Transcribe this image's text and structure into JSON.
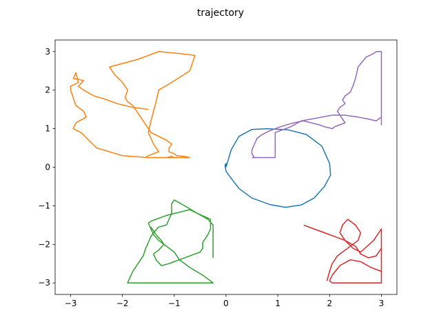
{
  "chart_data": {
    "type": "line",
    "title": "trajectory",
    "xlabel": "",
    "ylabel": "",
    "xlim": [
      -3.3,
      3.3
    ],
    "ylim": [
      -3.3,
      3.3
    ],
    "xticks": [
      -3,
      -2,
      -1,
      0,
      1,
      2,
      3
    ],
    "yticks": [
      -3,
      -2,
      -1,
      0,
      1,
      2,
      3
    ],
    "xtick_labels": [
      "−3",
      "−2",
      "−1",
      "0",
      "1",
      "2",
      "3"
    ],
    "ytick_labels": [
      "−3",
      "−2",
      "−1",
      "0",
      "1",
      "2",
      "3"
    ],
    "grid": false,
    "legend": "none",
    "series": [
      {
        "color": "#1f77b4",
        "x": [
          0.0,
          0.1,
          0.25,
          0.5,
          0.8,
          1.2,
          1.55,
          1.85,
          2.0,
          2.02,
          1.9,
          1.7,
          1.45,
          1.15,
          0.85,
          0.5,
          0.25,
          0.05,
          0.0,
          -0.02,
          0.0,
          0.0
        ],
        "y": [
          0.0,
          0.45,
          0.8,
          0.98,
          1.0,
          0.97,
          0.85,
          0.55,
          0.1,
          -0.2,
          -0.5,
          -0.8,
          -0.98,
          -1.04,
          -0.97,
          -0.8,
          -0.55,
          -0.2,
          -0.1,
          0.05,
          0.1,
          0.0
        ]
      },
      {
        "color": "#ff7f0e",
        "x": [
          -1.5,
          -1.8,
          -2.1,
          -2.3,
          -2.55,
          -2.75,
          -2.85,
          -2.75,
          -2.95,
          -2.9,
          -2.85,
          -3.0,
          -3.0,
          -2.95,
          -2.9,
          -2.75,
          -2.7,
          -2.9,
          -2.95,
          -2.8,
          -2.65,
          -2.5,
          -2.0,
          -1.5,
          -1.35,
          -1.3,
          -1.1,
          -1.0,
          -1.05,
          -1.15,
          -1.0,
          -0.95,
          -0.9,
          -0.9,
          -0.8,
          -0.7,
          -0.8,
          -0.95,
          -1.0,
          -1.1,
          -1.1,
          -1.05,
          -1.15,
          -1.3,
          -1.45,
          -1.5,
          -1.55,
          -1.6,
          -1.65,
          -1.7,
          -1.75,
          -1.8,
          -1.9,
          -1.95,
          -1.9,
          -2.0,
          -2.15,
          -2.25,
          -1.7,
          -1.3,
          -0.9,
          -0.6,
          -0.7,
          -1.05,
          -1.3,
          -1.35,
          -1.45,
          -1.5,
          -1.4,
          -1.3,
          -1.5,
          -1.55
        ],
        "y": [
          1.5,
          1.55,
          1.65,
          1.75,
          1.85,
          2.0,
          2.1,
          2.25,
          2.3,
          2.45,
          2.2,
          2.1,
          2.0,
          1.8,
          1.6,
          1.45,
          1.3,
          1.15,
          1.0,
          0.9,
          0.7,
          0.5,
          0.3,
          0.25,
          0.25,
          0.25,
          0.25,
          0.25,
          0.28,
          0.25,
          0.25,
          0.25,
          0.25,
          0.25,
          0.25,
          0.25,
          0.28,
          0.3,
          0.35,
          0.4,
          0.5,
          0.6,
          0.7,
          0.8,
          0.9,
          1.0,
          1.1,
          1.2,
          1.3,
          1.4,
          1.5,
          1.6,
          1.7,
          1.8,
          2.0,
          2.2,
          2.4,
          2.6,
          2.8,
          3.0,
          2.95,
          2.9,
          2.5,
          2.2,
          2.0,
          1.7,
          1.2,
          0.9,
          0.6,
          0.4,
          0.3,
          0.25
        ],
        "_note": "see render"
      },
      {
        "color": "#2ca02c",
        "x": [
          -1.45,
          -1.35,
          -1.25,
          -1.2,
          -1.3,
          -1.4,
          -1.35,
          -1.25,
          -1.1,
          -1.0,
          -0.9,
          -0.8,
          -0.7,
          -0.6,
          -0.5,
          -0.45,
          -0.45,
          -0.35,
          -0.3,
          -0.3,
          -0.3,
          -0.55,
          -0.8,
          -1.0,
          -1.05,
          -1.05,
          -1.1,
          -1.15,
          -1.3,
          -1.4,
          -1.45,
          -1.5,
          -1.55,
          -1.6,
          -1.7,
          -1.8,
          -1.85,
          -1.9,
          -1.5,
          -1.0,
          -0.6,
          -0.25,
          -0.45,
          -0.7,
          -0.9,
          -1.0,
          -1.1,
          -1.2,
          -1.3,
          -1.4,
          -1.45,
          -1.5,
          -1.45,
          -1.35,
          -1.25,
          -1.15,
          -1.0,
          -0.85,
          -0.7,
          -0.55,
          -0.35,
          -0.25,
          -0.25
        ],
        "y": [
          -1.55,
          -1.75,
          -1.9,
          -2.0,
          -2.15,
          -2.25,
          -2.4,
          -2.55,
          -2.5,
          -2.45,
          -2.4,
          -2.35,
          -2.3,
          -2.25,
          -2.2,
          -2.1,
          -1.95,
          -1.75,
          -1.6,
          -1.4,
          -1.35,
          -1.2,
          -1.0,
          -0.85,
          -0.95,
          -1.2,
          -1.35,
          -1.5,
          -1.55,
          -1.7,
          -1.8,
          -1.95,
          -2.1,
          -2.3,
          -2.5,
          -2.7,
          -2.85,
          -3.0,
          -3.0,
          -3.0,
          -3.0,
          -3.0,
          -2.8,
          -2.6,
          -2.4,
          -2.2,
          -2.1,
          -2.0,
          -1.9,
          -1.75,
          -1.6,
          -1.45,
          -1.4,
          -1.35,
          -1.3,
          -1.25,
          -1.2,
          -1.15,
          -1.1,
          -1.2,
          -1.35,
          -1.5,
          -2.35
        ]
      },
      {
        "color": "#d62728",
        "x": [
          1.5,
          1.7,
          1.9,
          2.1,
          2.3,
          2.5,
          2.6,
          2.75,
          2.9,
          3.0,
          3.0,
          2.8,
          2.6,
          2.4,
          2.2,
          2.05,
          2.0,
          2.05,
          2.2,
          2.4,
          2.6,
          2.8,
          3.0,
          3.0,
          2.85,
          2.6,
          2.45,
          2.3,
          2.2,
          2.25,
          2.35,
          2.5,
          2.6,
          2.55,
          2.45,
          2.3,
          2.15,
          2.05,
          2.0,
          1.95
        ],
        "y": [
          -1.5,
          -1.6,
          -1.7,
          -1.8,
          -1.9,
          -2.05,
          -2.25,
          -2.35,
          -2.3,
          -2.1,
          -3.0,
          -3.0,
          -3.0,
          -3.0,
          -3.0,
          -3.0,
          -2.95,
          -2.8,
          -2.55,
          -2.4,
          -2.45,
          -2.6,
          -2.7,
          -1.6,
          -1.9,
          -2.2,
          -2.1,
          -1.9,
          -1.7,
          -1.5,
          -1.35,
          -1.5,
          -1.7,
          -1.9,
          -2.0,
          -2.15,
          -2.3,
          -2.5,
          -2.7,
          -2.95
        ]
      },
      {
        "color": "#9467bd",
        "x": [
          0.5,
          0.6,
          0.75,
          0.95,
          0.95,
          0.95,
          0.95,
          1.05,
          1.25,
          1.45,
          1.65,
          1.85,
          2.05,
          2.3,
          2.55,
          2.75,
          2.9,
          3.0,
          3.0,
          3.0,
          2.9,
          2.85,
          2.7,
          2.55,
          2.5,
          2.45,
          2.4,
          2.3,
          2.25,
          2.3,
          2.2,
          2.15,
          2.2,
          2.25,
          2.3,
          2.2,
          2.1,
          2.05,
          2.0,
          1.9,
          1.8,
          1.65,
          1.5,
          1.3,
          1.05,
          0.85,
          0.7,
          0.6,
          0.55,
          0.5,
          0.5,
          0.55
        ],
        "y": [
          0.25,
          0.25,
          0.25,
          0.25,
          0.45,
          0.7,
          0.9,
          0.95,
          1.05,
          1.2,
          1.25,
          1.3,
          1.35,
          1.35,
          1.3,
          1.25,
          1.2,
          1.3,
          1.1,
          3.0,
          3.0,
          2.95,
          2.85,
          2.6,
          2.3,
          2.1,
          1.95,
          1.85,
          1.75,
          1.65,
          1.55,
          1.45,
          1.35,
          1.25,
          1.15,
          1.1,
          1.05,
          1.0,
          1.02,
          1.05,
          1.1,
          1.15,
          1.2,
          1.15,
          1.05,
          0.95,
          0.85,
          0.75,
          0.6,
          0.45,
          0.35,
          0.25
        ]
      }
    ]
  }
}
